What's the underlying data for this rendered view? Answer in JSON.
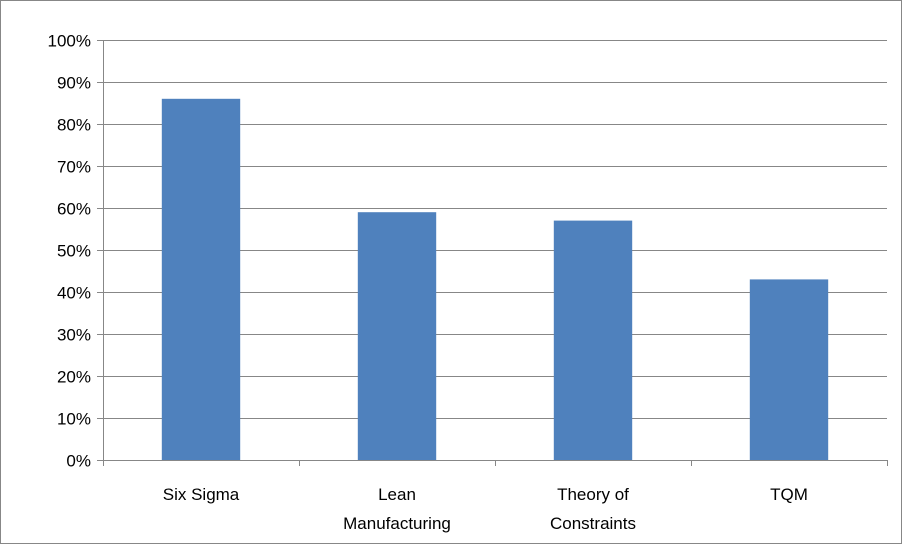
{
  "chart_data": {
    "type": "bar",
    "categories": [
      "Six Sigma",
      "Lean Manufacturing",
      "Theory of Constraints",
      "TQM"
    ],
    "category_label_lines": [
      [
        "Six Sigma"
      ],
      [
        "Lean",
        "Manufacturing"
      ],
      [
        "Theory of",
        "Constraints"
      ],
      [
        "TQM"
      ]
    ],
    "values": [
      86,
      59,
      57,
      43
    ],
    "value_format": "percent",
    "ylim": [
      0,
      100
    ],
    "y_ticks": [
      "0%",
      "10%",
      "20%",
      "30%",
      "40%",
      "50%",
      "60%",
      "70%",
      "80%",
      "90%",
      "100%"
    ],
    "grid": true,
    "legend": "none",
    "title": "",
    "xlabel": "",
    "ylabel": "",
    "colors": {
      "bar": "#4f81bd",
      "grid": "#878787",
      "axis": "#878787",
      "frame": "#878787"
    }
  }
}
